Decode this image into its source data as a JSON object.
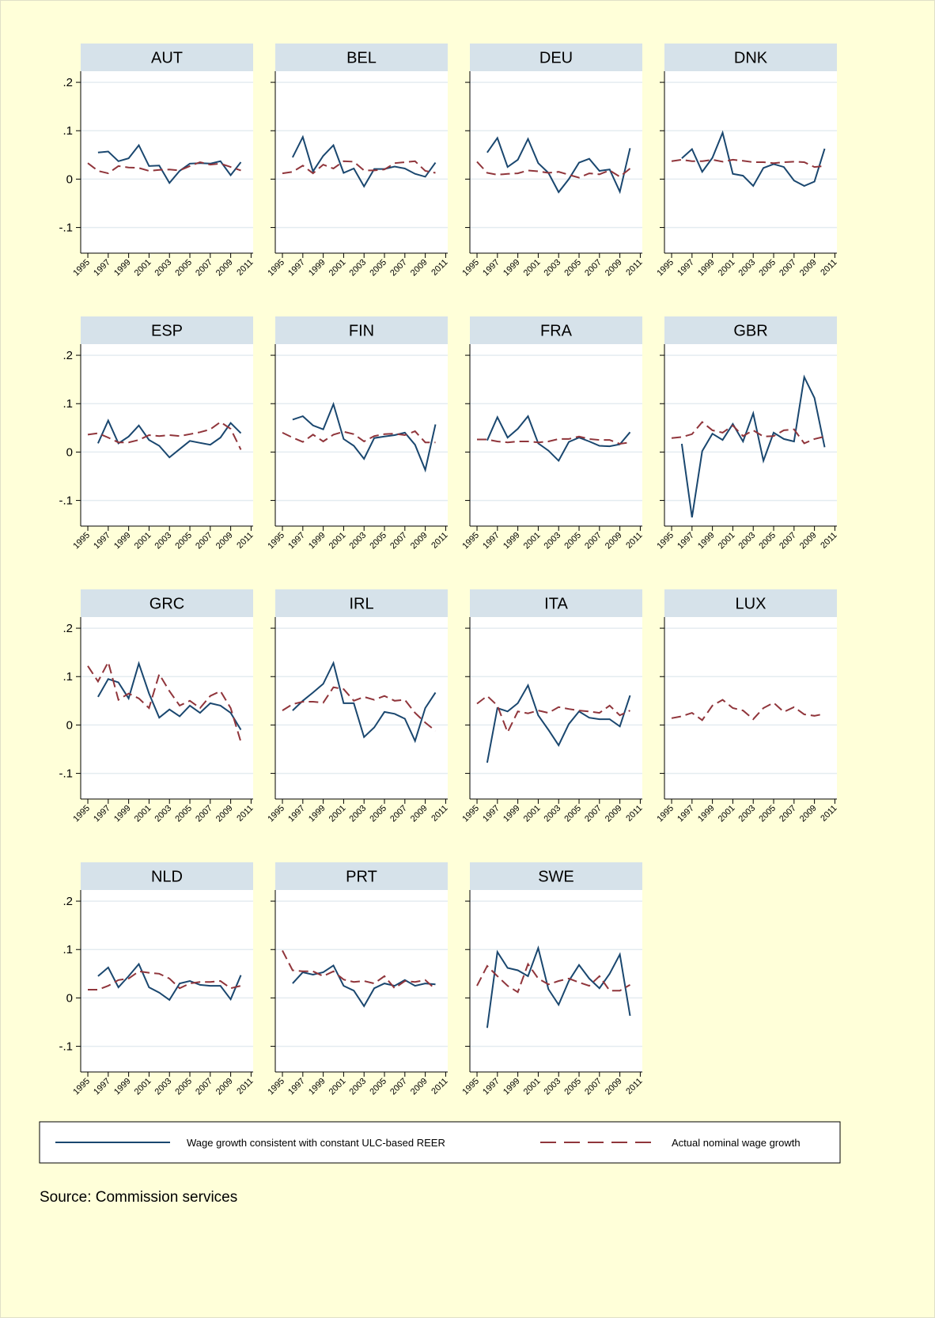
{
  "chart_data": {
    "type": "line",
    "x": [
      1995,
      1996,
      1997,
      1998,
      1999,
      2000,
      2001,
      2002,
      2003,
      2004,
      2005,
      2006,
      2007,
      2008,
      2009,
      2010
    ],
    "xlim": [
      1994.3,
      2011.2
    ],
    "xticks": [
      1995,
      1997,
      1999,
      2001,
      2003,
      2005,
      2007,
      2009,
      2011
    ],
    "ylim": [
      -0.153,
      0.223
    ],
    "yticks": [
      {
        "value": 0.2,
        "label": ".2"
      },
      {
        "value": 0.1,
        "label": ".1"
      },
      0,
      {
        "value": -0.1,
        "label": "-.1"
      }
    ],
    "grid": true,
    "legend": "bottom",
    "series": [
      {
        "name": "Wage growth consistent with constant ULC-based REER",
        "color": "#1a476f",
        "dash": false
      },
      {
        "name": "Actual nominal wage growth",
        "color": "#90353b",
        "dash": true
      }
    ],
    "panels": [
      {
        "title": "AUT",
        "values": [
          [
            null,
            0.055,
            0.057,
            0.037,
            0.043,
            0.07,
            0.027,
            0.028,
            -0.008,
            0.017,
            0.032,
            0.033,
            0.032,
            0.037,
            0.008,
            0.035
          ],
          [
            0.033,
            0.017,
            0.012,
            0.027,
            0.024,
            0.023,
            0.017,
            0.019,
            0.02,
            0.018,
            0.027,
            0.035,
            0.03,
            0.032,
            0.025,
            0.018
          ]
        ]
      },
      {
        "title": "BEL",
        "values": [
          [
            null,
            0.045,
            0.087,
            0.016,
            0.048,
            0.07,
            0.013,
            0.022,
            -0.015,
            0.021,
            0.021,
            0.026,
            0.022,
            0.011,
            0.005,
            0.034
          ],
          [
            0.012,
            0.015,
            0.028,
            0.012,
            0.03,
            0.022,
            0.037,
            0.036,
            0.018,
            0.018,
            0.02,
            0.033,
            0.035,
            0.037,
            0.017,
            0.013
          ]
        ]
      },
      {
        "title": "DEU",
        "values": [
          [
            null,
            0.055,
            0.085,
            0.025,
            0.04,
            0.083,
            0.033,
            0.013,
            -0.027,
            0.0,
            0.034,
            0.042,
            0.017,
            0.02,
            -0.026,
            0.064
          ],
          [
            0.036,
            0.013,
            0.009,
            0.011,
            0.012,
            0.018,
            0.016,
            0.013,
            0.015,
            0.009,
            0.003,
            0.012,
            0.01,
            0.018,
            0.005,
            0.022
          ]
        ]
      },
      {
        "title": "DNK",
        "values": [
          [
            null,
            0.043,
            0.062,
            0.015,
            0.044,
            0.096,
            0.011,
            0.007,
            -0.014,
            0.023,
            0.031,
            0.025,
            -0.003,
            -0.014,
            -0.005,
            0.063
          ],
          [
            0.037,
            0.04,
            0.037,
            0.037,
            0.04,
            0.036,
            0.04,
            0.038,
            0.035,
            0.035,
            0.033,
            0.035,
            0.036,
            0.035,
            0.025,
            0.027
          ]
        ]
      },
      {
        "title": "ESP",
        "values": [
          [
            null,
            0.018,
            0.065,
            0.018,
            0.032,
            0.055,
            0.025,
            0.013,
            -0.011,
            0.006,
            0.023,
            0.019,
            0.015,
            0.03,
            0.06,
            0.039
          ],
          [
            0.036,
            0.039,
            0.03,
            0.02,
            0.02,
            0.025,
            0.035,
            0.033,
            0.035,
            0.033,
            0.037,
            0.041,
            0.047,
            0.062,
            0.048,
            0.005
          ]
        ]
      },
      {
        "title": "FIN",
        "values": [
          [
            null,
            0.067,
            0.074,
            0.055,
            0.047,
            0.099,
            0.027,
            0.013,
            -0.014,
            0.029,
            0.032,
            0.035,
            0.04,
            0.015,
            -0.037,
            0.057
          ],
          [
            0.04,
            0.03,
            0.021,
            0.036,
            0.022,
            0.036,
            0.042,
            0.037,
            0.022,
            0.033,
            0.037,
            0.038,
            0.035,
            0.043,
            0.02,
            0.02
          ]
        ]
      },
      {
        "title": "FRA",
        "values": [
          [
            null,
            0.024,
            0.072,
            0.03,
            0.048,
            0.074,
            0.018,
            0.003,
            -0.018,
            0.021,
            0.03,
            0.022,
            0.013,
            0.012,
            0.016,
            0.041
          ],
          [
            0.026,
            0.026,
            0.022,
            0.02,
            0.022,
            0.022,
            0.02,
            0.022,
            0.027,
            0.027,
            0.032,
            0.027,
            0.025,
            0.025,
            0.017,
            0.02
          ]
        ]
      },
      {
        "title": "GBR",
        "values": [
          [
            null,
            0.017,
            -0.135,
            0.002,
            0.038,
            0.025,
            0.058,
            0.022,
            0.08,
            -0.018,
            0.04,
            0.027,
            0.022,
            0.155,
            0.112,
            0.01
          ],
          [
            0.029,
            0.031,
            0.037,
            0.062,
            0.045,
            0.04,
            0.055,
            0.033,
            0.045,
            0.032,
            0.033,
            0.045,
            0.047,
            0.018,
            0.027,
            0.032
          ]
        ]
      },
      {
        "title": "GRC",
        "values": [
          [
            null,
            0.058,
            0.095,
            0.088,
            0.055,
            0.127,
            0.065,
            0.015,
            0.032,
            0.018,
            0.04,
            0.025,
            0.045,
            0.04,
            0.025,
            -0.01
          ],
          [
            0.122,
            0.09,
            0.13,
            0.052,
            0.065,
            0.055,
            0.035,
            0.105,
            0.07,
            0.04,
            0.05,
            0.035,
            0.06,
            0.07,
            0.035,
            -0.035
          ]
        ]
      },
      {
        "title": "IRL",
        "values": [
          [
            null,
            0.03,
            0.05,
            0.067,
            0.085,
            0.128,
            0.045,
            0.045,
            -0.025,
            -0.005,
            0.027,
            0.023,
            0.013,
            -0.033,
            0.035,
            0.067
          ],
          [
            0.03,
            0.043,
            0.048,
            0.048,
            0.046,
            0.078,
            0.074,
            0.05,
            0.058,
            0.052,
            0.06,
            0.05,
            0.052,
            0.025,
            0.005,
            -0.012
          ]
        ]
      },
      {
        "title": "ITA",
        "values": [
          [
            null,
            -0.078,
            0.035,
            0.028,
            0.045,
            0.082,
            0.02,
            -0.01,
            -0.042,
            0.002,
            0.028,
            0.015,
            0.012,
            0.012,
            -0.003,
            0.061
          ],
          [
            0.044,
            0.06,
            0.04,
            -0.015,
            0.028,
            0.024,
            0.03,
            0.025,
            0.037,
            0.033,
            0.03,
            0.028,
            0.025,
            0.04,
            0.02,
            0.03
          ]
        ]
      },
      {
        "title": "LUX",
        "values": [
          [
            null,
            null,
            null,
            null,
            null,
            null,
            null,
            null,
            null,
            null,
            null,
            null,
            null,
            null,
            null,
            null
          ],
          [
            0.014,
            0.018,
            0.025,
            0.01,
            0.04,
            0.052,
            0.035,
            0.03,
            0.012,
            0.035,
            0.046,
            0.027,
            0.037,
            0.022,
            0.019,
            0.023
          ]
        ]
      },
      {
        "title": "NLD",
        "values": [
          [
            null,
            0.045,
            0.063,
            0.022,
            0.045,
            0.07,
            0.022,
            0.011,
            -0.004,
            0.03,
            0.035,
            0.027,
            0.025,
            0.025,
            -0.003,
            0.047
          ],
          [
            0.017,
            0.017,
            0.025,
            0.037,
            0.04,
            0.055,
            0.052,
            0.05,
            0.04,
            0.02,
            0.03,
            0.033,
            0.033,
            0.035,
            0.02,
            0.025
          ]
        ]
      },
      {
        "title": "PRT",
        "values": [
          [
            null,
            0.03,
            0.053,
            0.048,
            0.053,
            0.067,
            0.025,
            0.015,
            -0.017,
            0.02,
            0.03,
            0.025,
            0.037,
            0.025,
            0.03,
            0.028
          ],
          [
            0.098,
            0.057,
            0.055,
            0.055,
            0.045,
            0.055,
            0.038,
            0.033,
            0.035,
            0.03,
            0.045,
            0.02,
            0.035,
            0.033,
            0.037,
            0.018
          ]
        ]
      },
      {
        "title": "SWE",
        "values": [
          [
            null,
            -0.062,
            0.095,
            0.062,
            0.057,
            0.045,
            0.103,
            0.018,
            -0.014,
            0.035,
            0.068,
            0.04,
            0.02,
            0.05,
            0.09,
            -0.037
          ],
          [
            0.025,
            0.066,
            0.045,
            0.025,
            0.012,
            0.07,
            0.04,
            0.028,
            0.035,
            0.04,
            0.032,
            0.025,
            0.045,
            0.015,
            0.015,
            0.027
          ]
        ]
      }
    ],
    "note": "Source: Commission services"
  }
}
